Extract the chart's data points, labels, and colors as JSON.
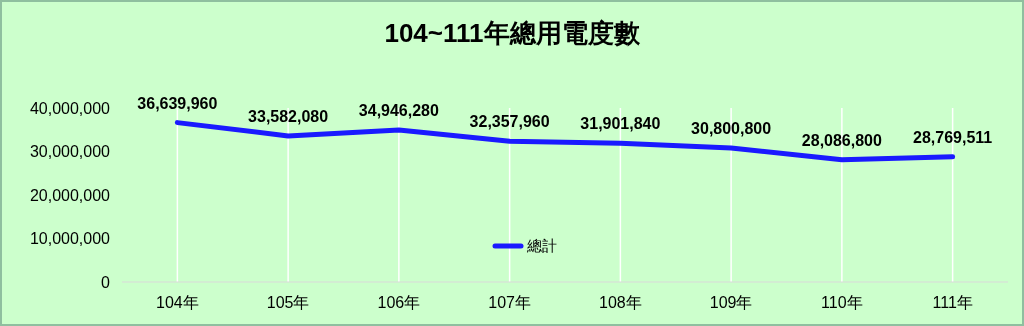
{
  "chart_data": {
    "type": "line",
    "title": "104~111年總用電度數",
    "categories": [
      "104年",
      "105年",
      "106年",
      "107年",
      "108年",
      "109年",
      "110年",
      "111年"
    ],
    "series": [
      {
        "name": "總計",
        "color": "#1a1aff",
        "values": [
          36639960,
          33582080,
          34946280,
          32357960,
          31901840,
          30800800,
          28086800,
          28769511
        ],
        "value_labels": [
          "36,639,960",
          "33,582,080",
          "34,946,280",
          "32,357,960",
          "31,901,840",
          "30,800,800",
          "28,086,800",
          "28,769,511"
        ]
      }
    ],
    "ylim": [
      0,
      40000000
    ],
    "yticks": [
      {
        "value": 0,
        "label": "0"
      },
      {
        "value": 10000000,
        "label": "10,000,000"
      },
      {
        "value": 20000000,
        "label": "20,000,000"
      },
      {
        "value": 30000000,
        "label": "30,000,000"
      },
      {
        "value": 40000000,
        "label": "40,000,000"
      }
    ],
    "grid": "x",
    "legend": "bottom",
    "marker": "none",
    "line_style": "solid"
  }
}
